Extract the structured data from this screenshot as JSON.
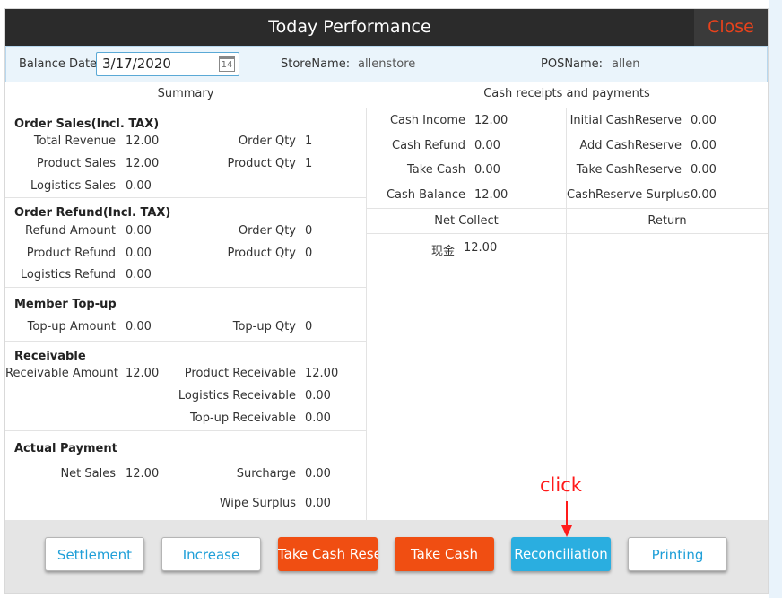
{
  "title": "Today Performance",
  "close_label": "Close",
  "info": {
    "balance_date_label": "Balance Date:",
    "balance_date_value": "3/17/2020",
    "calendar_day": "14",
    "store_label": "StoreName:",
    "store_value": "allenstore",
    "pos_label": "POSName:",
    "pos_value": "allen"
  },
  "summary": {
    "header": "Summary",
    "order_sales": {
      "title": "Order Sales(Incl. TAX)",
      "total_revenue_label": "Total Revenue",
      "total_revenue": "12.00",
      "order_qty_label": "Order Qty",
      "order_qty": "1",
      "product_sales_label": "Product Sales",
      "product_sales": "12.00",
      "product_qty_label": "Product Qty",
      "product_qty": "1",
      "logistics_sales_label": "Logistics Sales",
      "logistics_sales": "0.00"
    },
    "order_refund": {
      "title": "Order Refund(Incl. TAX)",
      "refund_amount_label": "Refund Amount",
      "refund_amount": "0.00",
      "order_qty_label": "Order Qty",
      "order_qty": "0",
      "product_refund_label": "Product Refund",
      "product_refund": "0.00",
      "product_qty_label": "Product Qty",
      "product_qty": "0",
      "logistics_refund_label": "Logistics Refund",
      "logistics_refund": "0.00"
    },
    "member_topup": {
      "title": "Member Top-up",
      "topup_amount_label": "Top-up Amount",
      "topup_amount": "0.00",
      "topup_qty_label": "Top-up Qty",
      "topup_qty": "0"
    },
    "receivable": {
      "title": "Receivable",
      "receivable_amount_label": "Receivable Amount",
      "receivable_amount": "12.00",
      "product_receivable_label": "Product Receivable",
      "product_receivable": "12.00",
      "logistics_receivable_label": "Logistics Receivable",
      "logistics_receivable": "0.00",
      "topup_receivable_label": "Top-up Receivable",
      "topup_receivable": "0.00"
    },
    "actual_payment": {
      "title": "Actual Payment",
      "net_sales_label": "Net Sales",
      "net_sales": "12.00",
      "surcharge_label": "Surcharge",
      "surcharge": "0.00",
      "wipe_surplus_label": "Wipe Surplus",
      "wipe_surplus": "0.00"
    }
  },
  "cash": {
    "header": "Cash receipts and payments",
    "cash_income_label": "Cash Income",
    "cash_income": "12.00",
    "cash_refund_label": "Cash Refund",
    "cash_refund": "0.00",
    "take_cash_label": "Take Cash",
    "take_cash": "0.00",
    "cash_balance_label": "Cash Balance",
    "cash_balance": "12.00",
    "initial_reserve_label": "Initial CashReserve",
    "initial_reserve": "0.00",
    "add_reserve_label": "Add CashReserve",
    "add_reserve": "0.00",
    "take_reserve_label": "Take CashReserve",
    "take_reserve": "0.00",
    "reserve_surplus_label": "CashReserve Surplus",
    "reserve_surplus": "0.00",
    "net_collect_header": "Net Collect",
    "return_header": "Return",
    "net_collect_items": [
      {
        "label": "现金",
        "value": "12.00"
      }
    ]
  },
  "buttons": {
    "settlement": "Settlement",
    "increase": "Increase",
    "take_cash_reserve": "Take Cash Reser",
    "take_cash": "Take Cash",
    "reconciliation": "Reconciliation",
    "printing": "Printing"
  },
  "annotation": {
    "text": "click"
  },
  "colors": {
    "title_bar": "#2b2b2b",
    "close_text": "#e8421c",
    "orange_button": "#f04e12",
    "blue_button": "#2aaee0",
    "annotation": "#ff1a1a"
  }
}
